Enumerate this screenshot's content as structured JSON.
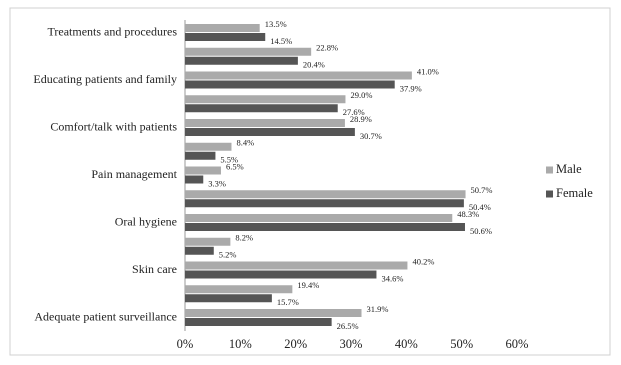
{
  "chart_data": {
    "type": "hbar",
    "categories": [
      "Treatments and procedures",
      null,
      "Educating patients and family",
      null,
      "Comfort/talk with patients",
      null,
      "Pain management",
      null,
      "Oral hygiene",
      null,
      "Skin care",
      null,
      "Adequate patient surveillance"
    ],
    "series": [
      {
        "name": "Male",
        "color": "#aaaaaa",
        "values": [
          13.5,
          22.8,
          41.0,
          29.0,
          28.9,
          8.4,
          6.5,
          50.7,
          48.3,
          8.2,
          40.2,
          19.4,
          31.9
        ],
        "value_labels": [
          "13.5%",
          "22.8%",
          "41.0%",
          "29.0%",
          "28.9%",
          "8.4%",
          "6.5%",
          "50.7%",
          "48.3%",
          "8.2%",
          "40.2%",
          "19.4%",
          "31.9%"
        ]
      },
      {
        "name": "Female",
        "color": "#555555",
        "values": [
          14.5,
          20.4,
          37.9,
          27.6,
          30.7,
          5.5,
          3.3,
          50.4,
          50.6,
          5.2,
          34.6,
          15.7,
          26.5
        ],
        "value_labels": [
          "14.5%",
          "20.4%",
          "37.9%",
          "27.6%",
          "30.7%",
          "5.5%",
          "3.3%",
          "50.4%",
          "50.6%",
          "5.2%",
          "34.6%",
          "15.7%",
          "26.5%"
        ]
      }
    ],
    "xlim": [
      0,
      60
    ],
    "xticks": [
      {
        "value": 0,
        "label": "0%"
      },
      {
        "value": 10,
        "label": "10%"
      },
      {
        "value": 20,
        "label": "20%"
      },
      {
        "value": 30,
        "label": "30%"
      },
      {
        "value": 40,
        "label": "40%"
      },
      {
        "value": 50,
        "label": "50%"
      },
      {
        "value": 60,
        "label": "60%"
      }
    ],
    "legend": "right"
  }
}
